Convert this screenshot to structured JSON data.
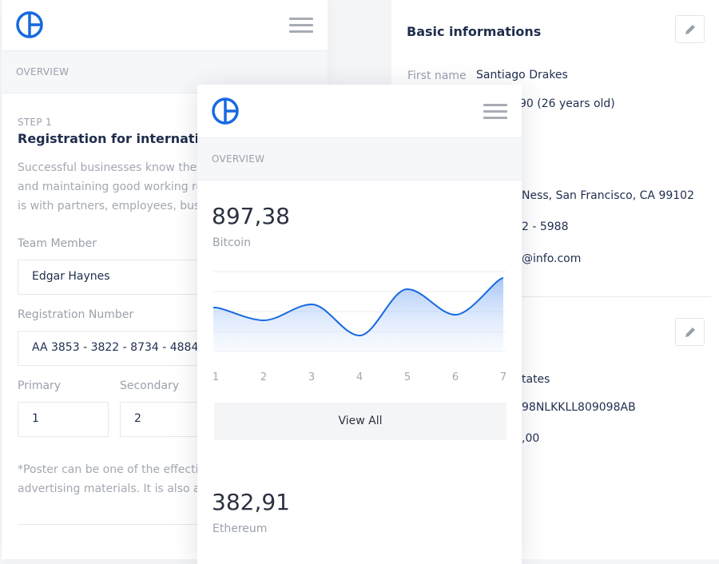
{
  "colors": {
    "accent": "#1769e0",
    "band": "#f6f7f9"
  },
  "left": {
    "overview": "OVERVIEW",
    "step": "STEP 1",
    "title": "Registration for internationa",
    "description": [
      "Successful businesses know the im",
      "and maintaining good working rela",
      "is with partners, employees, busin"
    ],
    "team_member_label": "Team Member",
    "team_member_value": "Edgar Haynes",
    "reg_label": "Registration Number",
    "reg_value": "AA 3853 - 3822 - 8734 - 4884 - 4",
    "primary_label": "Primary",
    "primary_value": "1",
    "secondary_label": "Secondary",
    "secondary_value": "2",
    "note": [
      "*Poster can be one of the effective",
      "advertising materials. It is also a gr"
    ]
  },
  "right": {
    "title": "Basic informations",
    "first_name_label": "First name",
    "first_name_value": "Santiago Drakes",
    "birth": "90 (26 years old)",
    "address": "Ness, San Francisco, CA 99102",
    "phone": "2 - 5988",
    "email": "@info.com",
    "country": "tates",
    "iban": "98NLKKLL809098AB",
    "amount": ",00"
  },
  "mid": {
    "overview": "OVERVIEW",
    "bitcoin_value": "897,38",
    "bitcoin_label": "Bitcoin",
    "view_all": "View All",
    "ethereum_value": "382,91",
    "ethereum_label": "Ethereum"
  },
  "chart_data": {
    "type": "area",
    "x": [
      1,
      2,
      3,
      4,
      5,
      6,
      7
    ],
    "categories": [
      "1",
      "2",
      "3",
      "4",
      "5",
      "6",
      "7"
    ],
    "values": [
      55,
      39,
      59,
      20,
      78,
      46,
      92
    ],
    "ylim": [
      0,
      100
    ],
    "grid": true,
    "line_color": "#1769e0"
  }
}
